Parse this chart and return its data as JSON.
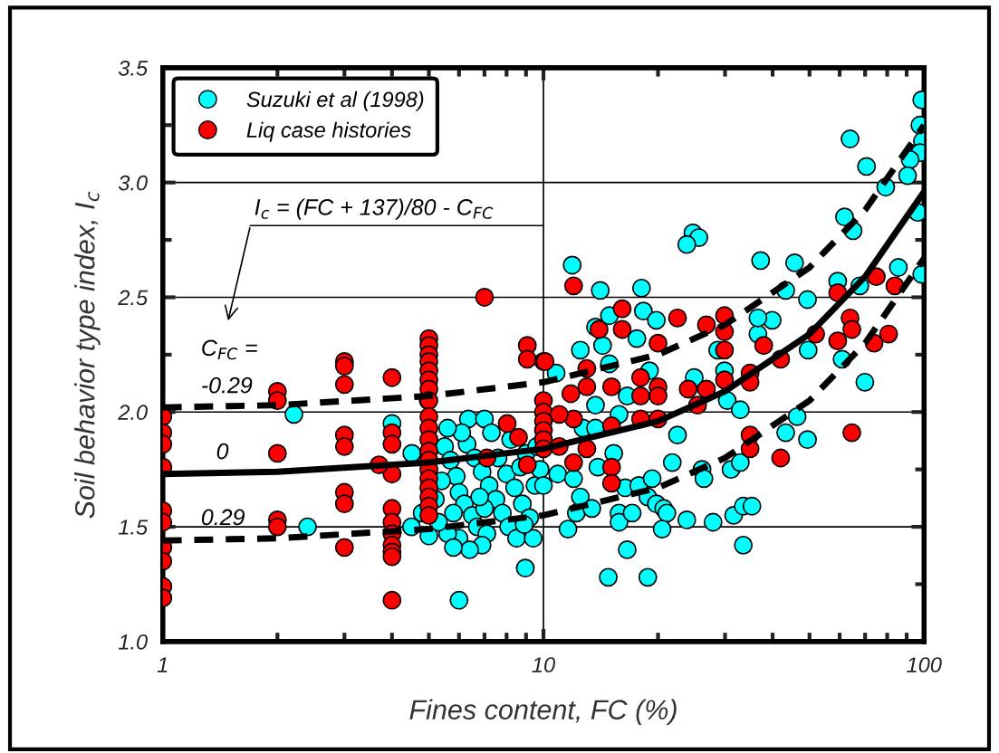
{
  "chart_data": {
    "type": "scatter",
    "xlabel": "Fines content, FC (%)",
    "ylabel": "Soil behavior type index, I$_{c}$",
    "log": "x",
    "xlim": [
      1,
      100
    ],
    "xticks": [
      1,
      10,
      100
    ],
    "ylim": [
      1.0,
      3.5
    ],
    "yticks": [
      {
        "value": 1.0,
        "label": "1.0"
      },
      {
        "value": 1.5,
        "label": "1.5"
      },
      {
        "value": 2.0,
        "label": "2.0"
      },
      {
        "value": 2.5,
        "label": "2.5"
      },
      {
        "value": 3.0,
        "label": "3.0"
      },
      {
        "value": 3.5,
        "label": "3.5"
      }
    ],
    "grid": true,
    "legend": "top left",
    "marker": "circle",
    "annotations": [
      "I$_{c}$ = (FC + 137)/80 - C$_{FC}$",
      "C$_{FC}$ =",
      "-0.29",
      "0",
      "0.29"
    ],
    "series": [
      {
        "name": "Suzuki et al (1998)",
        "color": "#00ffff",
        "x": [
          2.21,
          2.4,
          4.0,
          4.51,
          4.98,
          6.0,
          8.96,
          6.35,
          7.0,
          5.5,
          5.7,
          5.9,
          6.0,
          6.2,
          6.5,
          6.7,
          6.0,
          5.6,
          5.3,
          5.2,
          5.4,
          6.3,
          6.6,
          6.9,
          7.2,
          7.5,
          7.8,
          8.1,
          8.5,
          7.1,
          6.9,
          6.4,
          5.8,
          7.6,
          8.0,
          8.4,
          8.8,
          9.2,
          9.5,
          9.8,
          9.0,
          8.2,
          7.3,
          6.1,
          5.6,
          9.6,
          4.8,
          4.5,
          5.0,
          7.0,
          8.7,
          6.8,
          5.8,
          9.4,
          8.9,
          14.1,
          18.1,
          14.9,
          18.3,
          19.8,
          13.7,
          14.3,
          12.5,
          17.6,
          10.8,
          14.9,
          19.0,
          16.6,
          15.8,
          13.7,
          12.7,
          13.7,
          22.5,
          21.8,
          15.3,
          13.9,
          10.9,
          12.0,
          10.0,
          12.5,
          12.2,
          13.4,
          11.6,
          15.8,
          15.8,
          17.1,
          16.4,
          17.8,
          19.3,
          18.8,
          19.8,
          20.7,
          21.1,
          20.5,
          23.8,
          27.9,
          31.6,
          33.5,
          35.3,
          33.5,
          16.6,
          14.8,
          18.8,
          26.1,
          26.4,
          31.1,
          32.9,
          43.3,
          49.4,
          46.4,
          30.4,
          32.9,
          29.9,
          24.9,
          28.7,
          36.6,
          39.9,
          36.6,
          49.4,
          49.6,
          60.9,
          69.9,
          43.3,
          59.3,
          67.8,
          98.6,
          98.6,
          97.5,
          99.0,
          97.5,
          91.9,
          90.5,
          79.3,
          63.9,
          70.6,
          96.2,
          61.8,
          65.1,
          24.7,
          25.6,
          23.8,
          37.2,
          45.7,
          11.9,
          85.6
        ],
        "values": [
          1.99,
          1.5,
          1.95,
          1.82,
          2.05,
          1.18,
          1.32,
          1.97,
          1.97,
          1.85,
          1.79,
          1.72,
          1.65,
          1.6,
          1.55,
          1.5,
          1.45,
          1.47,
          1.52,
          1.62,
          1.7,
          1.86,
          1.8,
          1.74,
          1.68,
          1.62,
          1.56,
          1.5,
          1.45,
          1.47,
          1.42,
          1.4,
          1.41,
          1.8,
          1.73,
          1.67,
          1.6,
          1.54,
          1.68,
          1.75,
          1.82,
          1.88,
          1.91,
          1.91,
          1.93,
          1.85,
          1.56,
          1.5,
          1.46,
          1.58,
          1.76,
          1.63,
          1.56,
          1.45,
          1.51,
          2.53,
          2.54,
          2.42,
          2.44,
          2.4,
          2.37,
          2.29,
          2.27,
          2.32,
          2.17,
          2.21,
          2.18,
          2.07,
          1.99,
          2.03,
          1.93,
          1.93,
          1.9,
          1.78,
          1.82,
          1.76,
          1.73,
          1.71,
          1.68,
          1.63,
          1.56,
          1.58,
          1.49,
          1.56,
          1.52,
          1.56,
          1.67,
          1.68,
          1.71,
          1.63,
          1.6,
          1.58,
          1.56,
          1.49,
          1.53,
          1.52,
          1.55,
          1.59,
          1.59,
          1.42,
          1.4,
          1.28,
          1.28,
          1.75,
          1.71,
          1.75,
          1.78,
          1.91,
          1.88,
          1.98,
          2.05,
          2.01,
          2.18,
          2.15,
          2.27,
          2.34,
          2.4,
          2.41,
          2.49,
          2.27,
          2.23,
          2.13,
          2.53,
          2.57,
          2.55,
          2.6,
          3.36,
          3.25,
          3.18,
          3.13,
          3.1,
          3.03,
          2.98,
          3.19,
          3.07,
          2.87,
          2.85,
          2.79,
          2.78,
          2.76,
          2.73,
          2.66,
          2.65,
          2.64,
          2.63
        ]
      },
      {
        "name": "Liq case histories",
        "color": "#ff0000",
        "x": [
          1,
          1,
          1,
          1,
          1,
          1,
          1,
          1,
          1,
          1,
          2,
          2,
          2,
          2,
          2,
          3,
          3,
          3,
          3,
          3,
          3,
          3,
          3,
          4,
          4,
          4,
          4,
          4,
          4,
          4,
          4,
          4,
          4,
          4,
          5,
          5,
          5,
          5,
          5,
          5,
          5,
          5,
          5,
          5,
          5,
          5,
          5,
          5,
          5,
          5,
          5,
          5,
          5,
          7,
          8.03,
          8.6,
          9.07,
          9.07,
          10,
          10,
          9.07,
          7.1,
          3.7,
          10,
          10,
          10,
          10,
          10,
          12.0,
          16.1,
          14.0,
          16.1,
          22.5,
          26.8,
          29.9,
          29.9,
          29.9,
          37.9,
          20.0,
          10.1,
          13.0,
          11.8,
          13.0,
          15.1,
          18.0,
          18.0,
          20.0,
          20.0,
          24.0,
          26.8,
          29.9,
          34.9,
          34.9,
          42.0,
          51.9,
          59.3,
          63.9,
          64.6,
          59.3,
          74.9,
          83.8,
          73.9,
          80.7,
          64.6,
          42.0,
          34.9,
          34.9,
          25.4,
          15.1,
          15.1,
          12.0,
          12.0,
          11.0,
          13.0,
          11.0,
          15.1,
          18.0,
          20.0
        ],
        "values": [
          1.98,
          1.91,
          1.86,
          1.76,
          1.57,
          1.52,
          1.41,
          1.35,
          1.24,
          1.19,
          2.09,
          2.05,
          1.82,
          1.53,
          1.5,
          2.22,
          2.2,
          2.12,
          1.9,
          1.85,
          1.65,
          1.6,
          1.41,
          2.15,
          1.91,
          1.86,
          1.73,
          1.58,
          1.52,
          1.47,
          1.42,
          1.39,
          1.37,
          1.18,
          2.32,
          2.29,
          2.25,
          2.22,
          2.18,
          2.14,
          2.1,
          2.05,
          1.98,
          1.93,
          1.88,
          1.83,
          1.79,
          1.75,
          1.71,
          1.67,
          1.63,
          1.59,
          1.55,
          2.5,
          1.95,
          1.89,
          2.29,
          2.23,
          2.22,
          2.05,
          1.77,
          1.8,
          1.77,
          2.0,
          1.96,
          1.92,
          1.88,
          1.84,
          2.55,
          2.45,
          2.36,
          2.36,
          2.41,
          2.38,
          2.42,
          2.35,
          2.27,
          2.29,
          2.3,
          2.22,
          2.19,
          2.08,
          2.11,
          2.11,
          2.15,
          2.07,
          2.11,
          2.07,
          2.1,
          2.1,
          2.14,
          2.17,
          2.13,
          2.23,
          2.34,
          2.52,
          2.41,
          2.36,
          2.31,
          2.59,
          2.55,
          2.3,
          2.34,
          1.91,
          1.8,
          1.9,
          1.84,
          2.03,
          1.76,
          1.69,
          1.78,
          1.97,
          1.99,
          1.84,
          1.85,
          1.94,
          1.97,
          1.97
        ]
      },
      {
        "type": "line",
        "color": "#000000",
        "line_style": "dashed",
        "marker": "none",
        "x": [
          1,
          2,
          5,
          10,
          20,
          30,
          50,
          70,
          100
        ],
        "values": [
          2.02,
          2.03,
          2.07,
          2.13,
          2.25,
          2.38,
          2.63,
          2.88,
          3.25
        ]
      },
      {
        "type": "line",
        "color": "#000000",
        "line_style": "solid",
        "marker": "none",
        "x": [
          1,
          2,
          5,
          10,
          20,
          30,
          50,
          70,
          100
        ],
        "values": [
          1.73,
          1.74,
          1.78,
          1.84,
          1.96,
          2.09,
          2.34,
          2.59,
          2.96
        ]
      },
      {
        "type": "line",
        "color": "#000000",
        "line_style": "dashed",
        "marker": "none",
        "x": [
          1,
          2,
          5,
          10,
          20,
          30,
          50,
          70,
          100
        ],
        "values": [
          1.44,
          1.45,
          1.49,
          1.55,
          1.67,
          1.8,
          2.05,
          2.3,
          2.67
        ]
      }
    ]
  }
}
